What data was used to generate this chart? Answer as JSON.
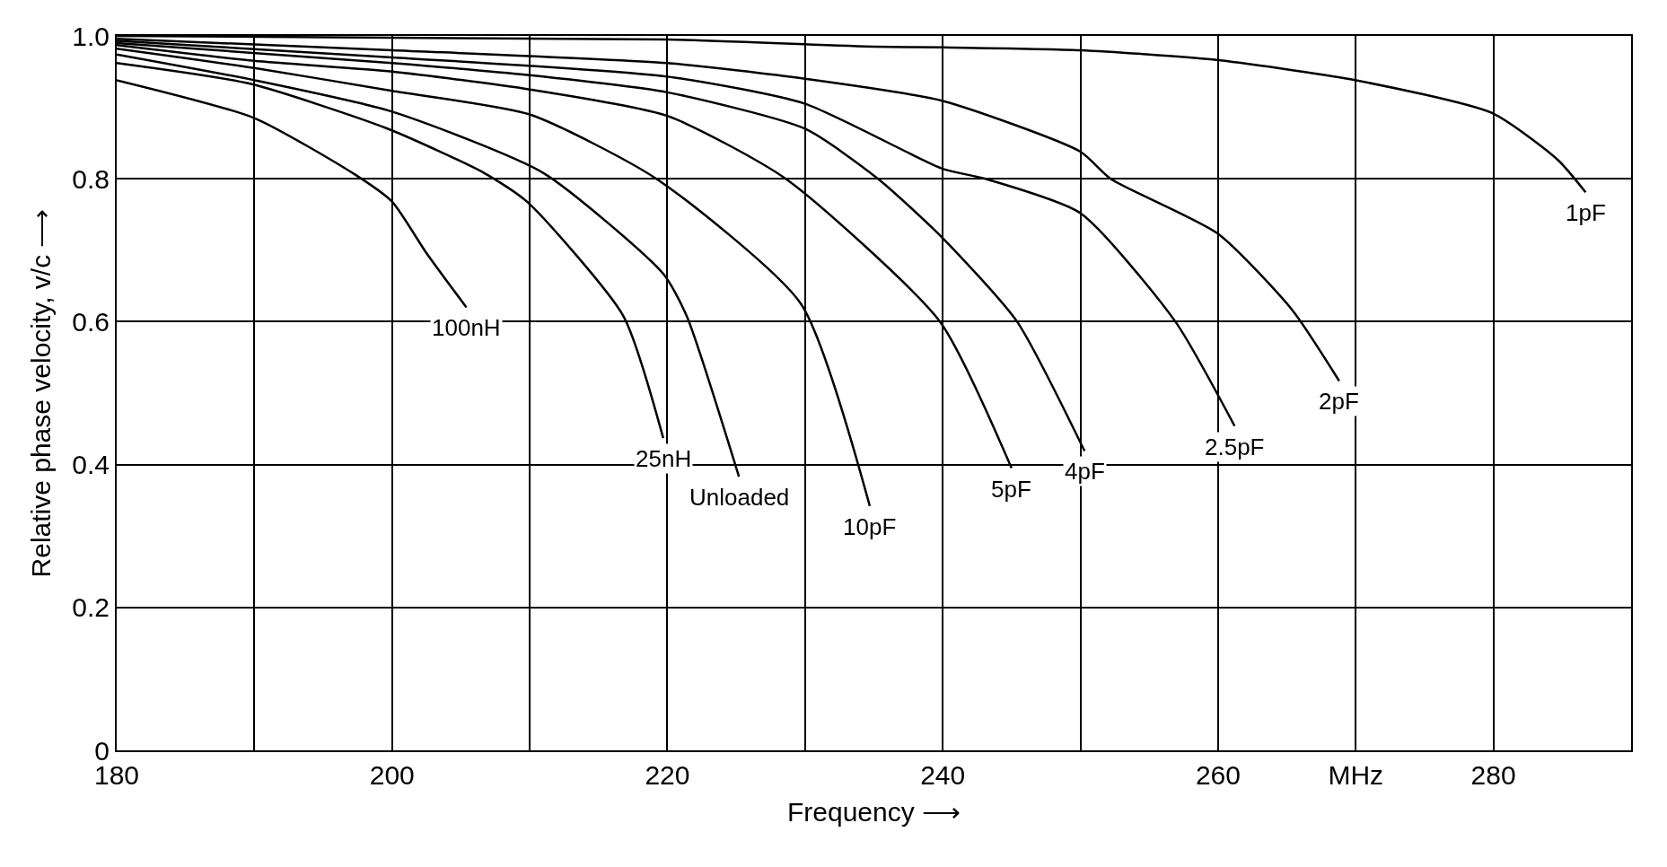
{
  "chart_data": {
    "type": "line",
    "xlabel": "Frequency ⟶",
    "ylabel": "Relative phase velocity, v/c ⟶",
    "xlim": [
      180,
      290
    ],
    "ylim": [
      0,
      1
    ],
    "xticks": [
      180,
      {
        "value": 190,
        "label": null
      },
      200,
      {
        "value": 210,
        "label": null
      },
      220,
      {
        "value": 230,
        "label": null
      },
      240,
      {
        "value": 250,
        "label": null
      },
      260,
      {
        "value": 270,
        "label": "MHz"
      },
      280,
      {
        "value": 290,
        "label": null
      }
    ],
    "yticks": [
      0,
      0.2,
      0.4,
      0.6,
      0.8,
      {
        "value": 1,
        "label": "1.0"
      }
    ],
    "grid": true,
    "legend": false,
    "marker": "none",
    "line_style": "solid",
    "series": [
      {
        "name": "100nH",
        "color": "#000000",
        "x": [
          180,
          190,
          197.3,
          200,
          202.5,
          205.4
        ],
        "values": [
          0.938,
          0.885,
          0.806,
          0.768,
          0.696,
          0.62
        ]
      },
      {
        "name": "25nH",
        "color": "#000000",
        "x": [
          180,
          189.7,
          199.7,
          206.7,
          209.8,
          216.8,
          219.7
        ],
        "values": [
          0.962,
          0.933,
          0.87,
          0.808,
          0.768,
          0.608,
          0.437
        ]
      },
      {
        "name": "Unloaded",
        "color": "#000000",
        "x": [
          180,
          190,
          200,
          211,
          219.7,
          221.4,
          225.2
        ],
        "values": [
          0.974,
          0.938,
          0.894,
          0.808,
          0.667,
          0.608,
          0.383
        ]
      },
      {
        "name": "10pF",
        "color": "#000000",
        "x": [
          180,
          190,
          200,
          210,
          219.2,
          229.7,
          234.7
        ],
        "values": [
          0.982,
          0.955,
          0.923,
          0.89,
          0.8,
          0.625,
          0.342
        ]
      },
      {
        "name": "5pF",
        "color": "#000000",
        "x": [
          180,
          190,
          200,
          210,
          220,
          228.6,
          239.8,
          245
        ],
        "values": [
          0.987,
          0.965,
          0.95,
          0.925,
          0.888,
          0.8,
          0.6,
          0.395
        ]
      },
      {
        "name": "4pF",
        "color": "#000000",
        "x": [
          180,
          200,
          210,
          220,
          230,
          235.3,
          240,
          245.4,
          250.3
        ],
        "values": [
          0.99,
          0.962,
          0.945,
          0.921,
          0.87,
          0.8,
          0.717,
          0.6,
          0.419
        ]
      },
      {
        "name": "2.5pF",
        "color": "#000000",
        "x": [
          180,
          200,
          220,
          230,
          240,
          243.1,
          250,
          256.9,
          261.2
        ],
        "values": [
          0.993,
          0.97,
          0.943,
          0.905,
          0.814,
          0.8,
          0.752,
          0.6,
          0.454
        ]
      },
      {
        "name": "2pF",
        "color": "#000000",
        "x": [
          180,
          200,
          220,
          230,
          240,
          250,
          252.2,
          260,
          265.4,
          268.8
        ],
        "values": [
          0.996,
          0.98,
          0.962,
          0.94,
          0.909,
          0.838,
          0.8,
          0.723,
          0.616,
          0.517
        ]
      },
      {
        "name": "1pF",
        "color": "#000000",
        "x": [
          180,
          220,
          235,
          240,
          250,
          259.6,
          269.7,
          279.9,
          284.7,
          286.7
        ],
        "values": [
          1.0,
          0.995,
          0.985,
          0.984,
          0.98,
          0.967,
          0.939,
          0.892,
          0.826,
          0.781
        ]
      }
    ]
  }
}
